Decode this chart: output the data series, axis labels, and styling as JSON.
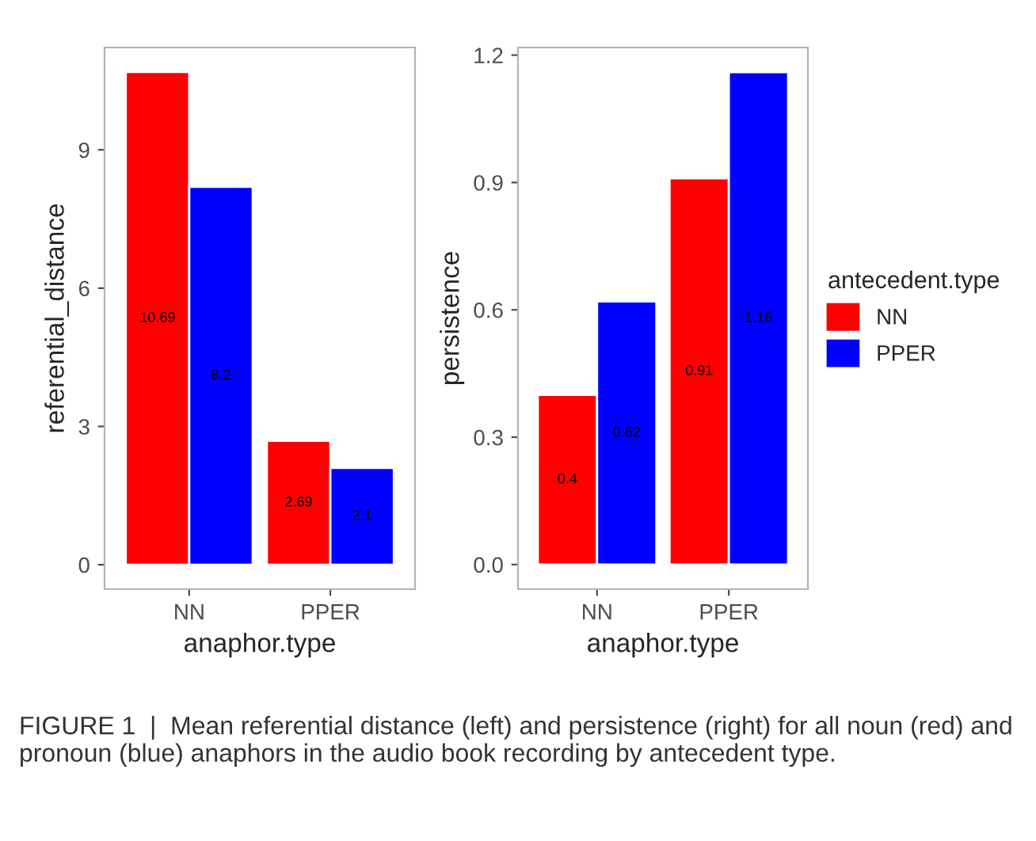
{
  "chart_data": [
    {
      "type": "bar",
      "categories": [
        "NN",
        "PPER"
      ],
      "xlabel": "anaphor.type",
      "ylabel": "referential_distance",
      "series": [
        {
          "color": "#ff0000",
          "values": [
            10.69,
            2.69
          ]
        },
        {
          "color": "#0000ff",
          "values": [
            8.2,
            2.1
          ]
        }
      ],
      "ylim": [
        -0.53,
        11.22
      ],
      "yticks": [
        0,
        3,
        6,
        9
      ],
      "data_labels": true,
      "grid": false,
      "legend": false
    },
    {
      "type": "bar",
      "categories": [
        "NN",
        "PPER"
      ],
      "xlabel": "anaphor.type",
      "ylabel": "persistence",
      "legend_title": "antecedent.type",
      "series": [
        {
          "name": "NN",
          "color": "#ff0000",
          "values": [
            0.4,
            0.91
          ]
        },
        {
          "name": "PPER",
          "color": "#0000ff",
          "values": [
            0.62,
            1.16
          ]
        }
      ],
      "ylim": [
        -0.058,
        1.218
      ],
      "yticks": [
        {
          "value": 0,
          "label": "0.0"
        },
        0.3,
        0.6,
        0.9,
        1.2
      ],
      "data_labels": true,
      "grid": false,
      "legend": "right",
      "annotations": [
        "FIGURE 1  |  Mean referential distance (left) and persistence (right) for all noun (red) and pronoun (blue) anaphors in the audio book recording by antecedent type."
      ]
    }
  ]
}
